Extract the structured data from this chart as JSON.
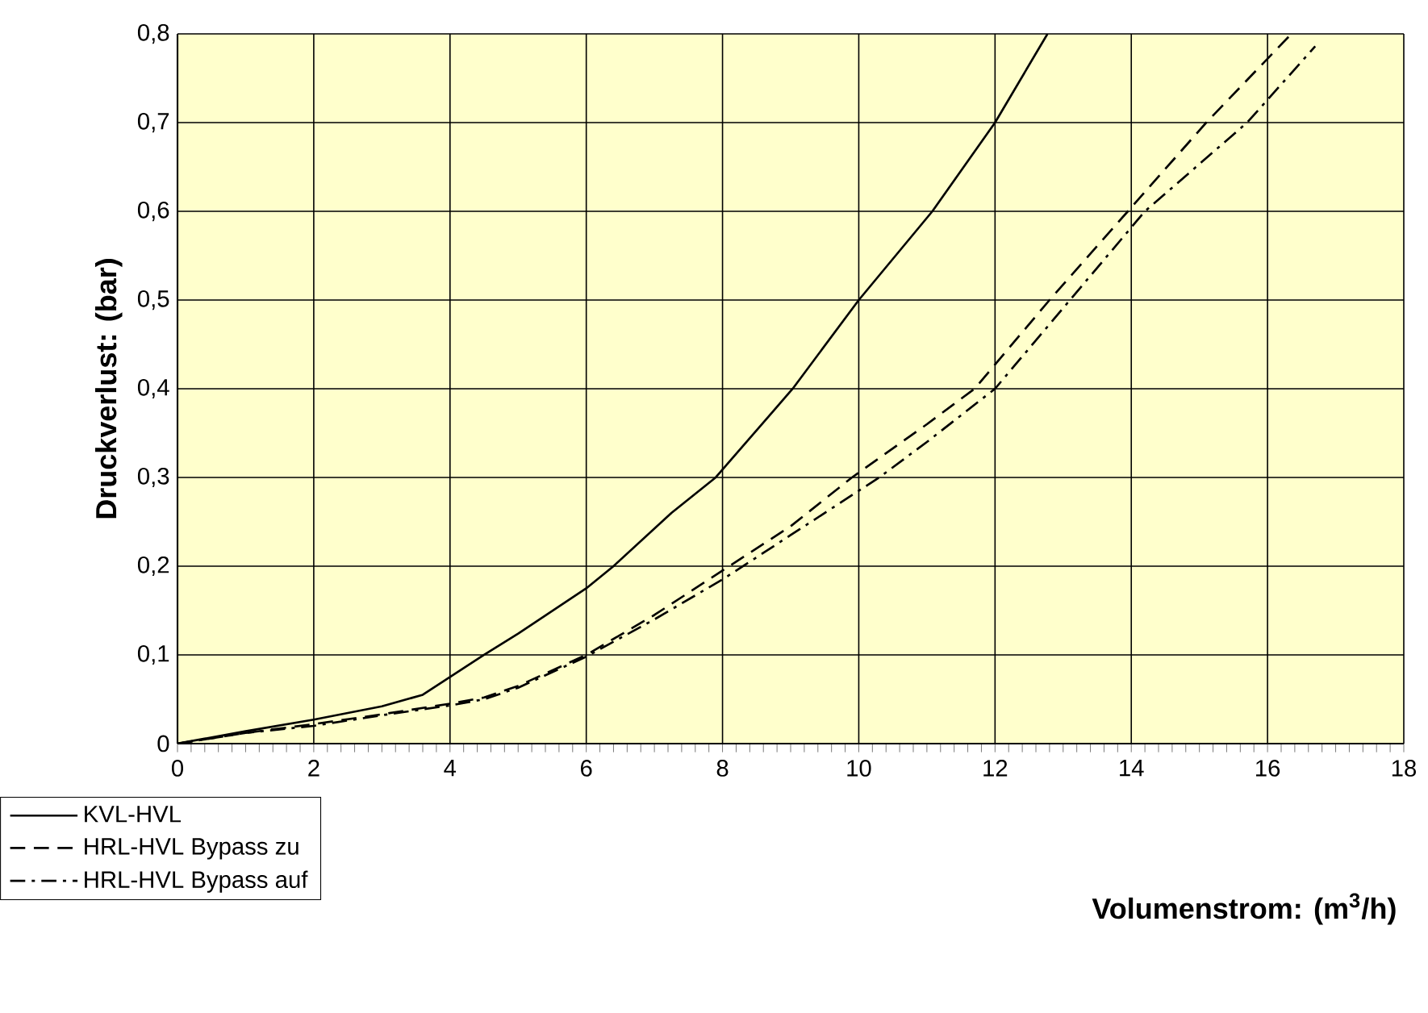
{
  "chart_data": {
    "type": "line",
    "xlabel": "Volumenstrom: (m$^{3}$/h)",
    "ylabel": "Druckverlust: (bar)",
    "xlim": [
      0,
      18
    ],
    "xticks": [
      0,
      2,
      4,
      6,
      8,
      10,
      12,
      14,
      16,
      18
    ],
    "ylim": [
      0,
      0.8
    ],
    "yticks": [
      0,
      {
        "value": 0.1,
        "label": "0,1"
      },
      {
        "value": 0.2,
        "label": "0,2"
      },
      {
        "value": 0.3,
        "label": "0,3"
      },
      {
        "value": 0.4,
        "label": "0,4"
      },
      {
        "value": 0.5,
        "label": "0,5"
      },
      {
        "value": 0.6,
        "label": "0,6"
      },
      {
        "value": 0.7,
        "label": "0,7"
      },
      {
        "value": 0.8,
        "label": "0,8"
      }
    ],
    "grid": true,
    "legend": "bottom left",
    "series": [
      {
        "name": "KVL-HVL",
        "color": "#000000",
        "line_style": "solid",
        "x": [
          0,
          1,
          2,
          3,
          3.6,
          4,
          4.5,
          5,
          6,
          6.4,
          7.25,
          7.9,
          9.03,
          10,
          11.08,
          12,
          12.77
        ],
        "values": [
          0,
          0.014,
          0.027,
          0.042,
          0.055,
          0.075,
          0.1,
          0.124,
          0.175,
          0.2,
          0.26,
          0.3,
          0.4,
          0.5,
          0.6,
          0.7,
          0.8
        ]
      },
      {
        "name": "HRL-HVL Bypass zu",
        "color": "#000000",
        "line_style": "dashed",
        "x": [
          0,
          1,
          2,
          3,
          4,
          4.5,
          5,
          6,
          7,
          8,
          9,
          9.9,
          11,
          11.7,
          12.8,
          13.95,
          15.1,
          16.35
        ],
        "values": [
          0,
          0.012,
          0.022,
          0.033,
          0.045,
          0.052,
          0.065,
          0.1,
          0.145,
          0.195,
          0.245,
          0.3,
          0.36,
          0.4,
          0.5,
          0.6,
          0.7,
          0.8
        ]
      },
      {
        "name": "HRL-HVL Bypass auf",
        "color": "#000000",
        "line_style": "dashdot",
        "x": [
          0,
          1,
          2,
          3,
          4,
          4.5,
          5,
          6,
          7,
          8,
          9,
          10.3,
          11,
          12,
          13.1,
          14.2,
          15.7,
          16.7
        ],
        "values": [
          0,
          0.012,
          0.02,
          0.032,
          0.043,
          0.05,
          0.063,
          0.098,
          0.14,
          0.185,
          0.235,
          0.3,
          0.34,
          0.4,
          0.5,
          0.6,
          0.7,
          0.786
        ]
      }
    ]
  }
}
